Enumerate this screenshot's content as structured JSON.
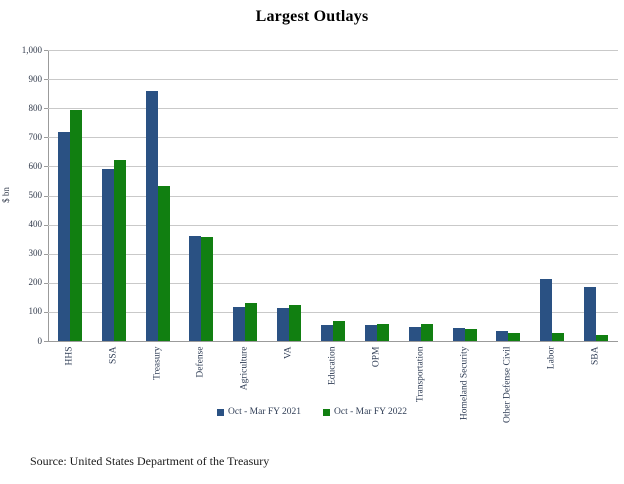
{
  "title": "Largest Outlays",
  "source_note": "Source: United States Department of the Treasury",
  "chart_data": {
    "type": "bar",
    "title": "Largest Outlays",
    "xlabel": "",
    "ylabel": "$ bn",
    "ylim": [
      0,
      1000
    ],
    "ytick_step": 100,
    "grid": true,
    "legend_position": "bottom",
    "categories": [
      "HHS",
      "SSA",
      "Treasury",
      "Defense",
      "Agriculture",
      "VA",
      "Education",
      "OPM",
      "Transportation",
      "Homeland Security",
      "Other Defense Civil",
      "Labor",
      "SBA"
    ],
    "series": [
      {
        "name": "Oct - Mar FY 2021",
        "color": "#2A5183",
        "values": [
          718,
          590,
          858,
          361,
          117,
          114,
          55,
          55,
          47,
          45,
          35,
          213,
          184
        ]
      },
      {
        "name": "Oct - Mar FY 2022",
        "color": "#117F11",
        "values": [
          794,
          622,
          533,
          357,
          131,
          125,
          70,
          58,
          57,
          41,
          29,
          28,
          19
        ]
      }
    ]
  },
  "colors": {
    "gridline": "#C9C9C9",
    "axis_line": "#9B9B9B",
    "tick_text": "#30394A",
    "category_text": "#2F3D55",
    "title_text": "#000000",
    "background": "#FFFFFF"
  }
}
